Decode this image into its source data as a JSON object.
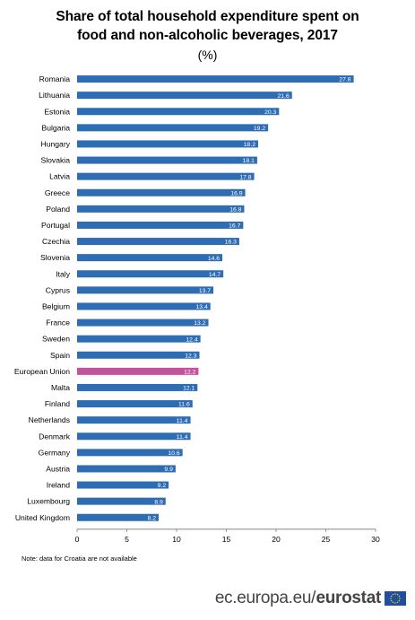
{
  "chart_data": {
    "type": "bar",
    "orientation": "horizontal",
    "title": "Share of total household expenditure spent on food and non-alcoholic beverages, 2017",
    "title_lines": [
      "Share of total household expenditure spent on",
      "food and non-alcoholic beverages, 2017"
    ],
    "subtitle": "(%)",
    "categories": [
      "Romania",
      "Lithuania",
      "Estonia",
      "Bulgaria",
      "Hungary",
      "Slovakia",
      "Latvia",
      "Greece",
      "Poland",
      "Portugal",
      "Czechia",
      "Slovenia",
      "Italy",
      "Cyprus",
      "Belgium",
      "France",
      "Sweden",
      "Spain",
      "European Union",
      "Malta",
      "Finland",
      "Netherlands",
      "Denmark",
      "Germany",
      "Austria",
      "Ireland",
      "Luxembourg",
      "United Kingdom"
    ],
    "values": [
      27.8,
      21.6,
      20.3,
      19.2,
      18.2,
      18.1,
      17.8,
      16.9,
      16.8,
      16.7,
      16.3,
      14.6,
      14.7,
      13.7,
      13.4,
      13.2,
      12.4,
      12.3,
      12.2,
      12.1,
      11.6,
      11.4,
      11.4,
      10.6,
      9.9,
      9.2,
      8.9,
      8.2
    ],
    "xlim": [
      0,
      30
    ],
    "xticks": [
      0,
      5,
      10,
      15,
      20,
      25,
      30
    ],
    "data_labels": true,
    "grid": false,
    "bar_color": "#2E6DB4",
    "highlight_category": "European Union",
    "highlight_color": "#C2539C"
  },
  "note": "Note:  data for Croatia are not available",
  "footer": {
    "domain": "ec.europa.eu",
    "slash": "/",
    "brand": "eurostat",
    "flag_colors": {
      "field": "#1F4FA0",
      "stars": "#FFDD00"
    }
  }
}
